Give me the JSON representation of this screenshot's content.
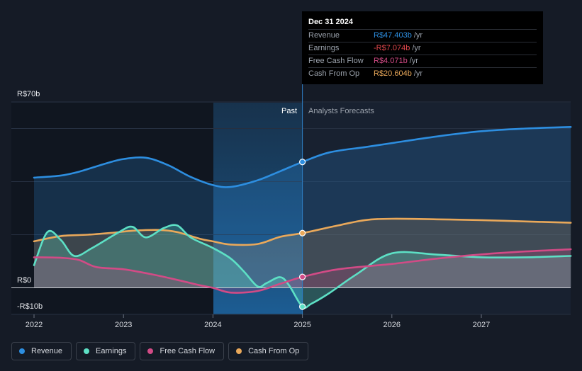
{
  "chart_data": {
    "type": "line",
    "title": "",
    "xlabel": "",
    "ylabel": "",
    "x_ticks": [
      "2022",
      "2023",
      "2024",
      "2025",
      "2026",
      "2027"
    ],
    "ylim": [
      -10,
      70
    ],
    "y_labels": {
      "top": "R$70b",
      "zero": "R$0",
      "bottom": "-R$10b"
    },
    "regions": {
      "past_label": "Past",
      "forecast_label": "Analysts Forecasts"
    },
    "colors": {
      "Revenue": "#2d8ee0",
      "Earnings": "#5de0c5",
      "Free Cash Flow": "#d24b86",
      "Cash From Op": "#e9a85a"
    },
    "series": [
      {
        "name": "Revenue",
        "x": [
          2022.0,
          2022.3,
          2022.5,
          2022.8,
          2023.0,
          2023.25,
          2023.5,
          2023.75,
          2024.0,
          2024.2,
          2024.5,
          2024.75,
          2025.0,
          2025.3,
          2025.7,
          2026.0,
          2026.5,
          2027.0,
          2027.5,
          2028.0
        ],
        "values": [
          41.5,
          42.3,
          43.7,
          46.8,
          48.5,
          49.0,
          46.2,
          41.8,
          38.7,
          38.0,
          40.5,
          43.9,
          47.4,
          51.0,
          53.0,
          54.5,
          57.0,
          59.0,
          60.0,
          60.6
        ]
      },
      {
        "name": "Earnings",
        "x": [
          2022.0,
          2022.15,
          2022.3,
          2022.45,
          2022.65,
          2022.95,
          2023.1,
          2023.25,
          2023.45,
          2023.6,
          2023.75,
          2024.0,
          2024.2,
          2024.35,
          2024.5,
          2024.6,
          2024.75,
          2024.85,
          2025.0,
          2025.1,
          2025.3,
          2025.6,
          2026.0,
          2026.5,
          2027.0,
          2027.5,
          2028.0
        ],
        "values": [
          8.5,
          21.0,
          18.0,
          12.0,
          15.0,
          21.0,
          23.0,
          19.0,
          22.5,
          23.5,
          19.0,
          15.0,
          11.0,
          6.0,
          0.5,
          1.8,
          4.0,
          1.0,
          -7.1,
          -6.0,
          -2.0,
          5.0,
          13.0,
          12.5,
          11.5,
          11.5,
          12.0
        ]
      },
      {
        "name": "Free Cash Flow",
        "x": [
          2022.0,
          2022.3,
          2022.5,
          2022.7,
          2023.0,
          2023.3,
          2023.6,
          2023.85,
          2024.0,
          2024.2,
          2024.5,
          2024.75,
          2025.0,
          2025.4,
          2026.0,
          2026.5,
          2027.0,
          2027.5,
          2028.0
        ],
        "values": [
          11.5,
          11.3,
          10.5,
          7.8,
          7.0,
          5.2,
          3.0,
          1.0,
          0.0,
          -1.8,
          -1.2,
          1.5,
          4.1,
          7.0,
          9.0,
          11.0,
          12.6,
          13.7,
          14.5
        ]
      },
      {
        "name": "Cash From Op",
        "x": [
          2022.0,
          2022.3,
          2022.6,
          2022.9,
          2023.1,
          2023.4,
          2023.6,
          2023.85,
          2024.0,
          2024.2,
          2024.5,
          2024.75,
          2025.0,
          2025.4,
          2025.7,
          2026.0,
          2026.5,
          2027.0,
          2027.5,
          2028.0
        ],
        "values": [
          17.5,
          19.5,
          20.0,
          20.8,
          21.5,
          21.8,
          21.0,
          18.5,
          17.5,
          16.3,
          16.5,
          19.2,
          20.6,
          23.5,
          25.5,
          26.0,
          25.8,
          25.5,
          25.0,
          24.5
        ]
      }
    ],
    "highlight_x": 2025.0
  },
  "tooltip": {
    "date": "Dec 31 2024",
    "rows": [
      {
        "label": "Revenue",
        "value": "R$47.403b",
        "unit": "/yr",
        "color": "#2d8ee0"
      },
      {
        "label": "Earnings",
        "value": "-R$7.074b",
        "unit": "/yr",
        "color": "#e0474c"
      },
      {
        "label": "Free Cash Flow",
        "value": "R$4.071b",
        "unit": "/yr",
        "color": "#d24b86"
      },
      {
        "label": "Cash From Op",
        "value": "R$20.604b",
        "unit": "/yr",
        "color": "#e9a85a"
      }
    ]
  },
  "legend": {
    "items": [
      {
        "label": "Revenue",
        "color": "#2d8ee0"
      },
      {
        "label": "Earnings",
        "color": "#5de0c5"
      },
      {
        "label": "Free Cash Flow",
        "color": "#d24b86"
      },
      {
        "label": "Cash From Op",
        "color": "#e9a85a"
      }
    ]
  }
}
